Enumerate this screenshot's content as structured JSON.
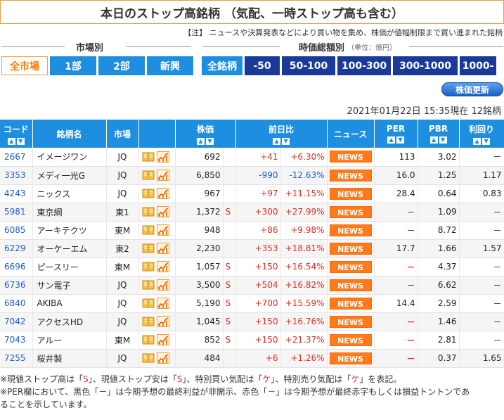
{
  "title": "本日のストップ高銘柄 （気配、一時ストップ高も含む）",
  "note": "【注】 ニュースや決算発表などにより買い物を集め、株価が値幅制限まで買い進まれた銘柄",
  "market_section": {
    "label": "市場別",
    "tabs": [
      "全市場",
      "1部",
      "2部",
      "新興"
    ]
  },
  "cap_section": {
    "label": "時価総額別",
    "unit": "（単位：億円）",
    "tabs": [
      "全銘柄",
      "-50",
      "50-100",
      "100-300",
      "300-1000",
      "1000-"
    ]
  },
  "update_button": "株価更新",
  "asof": "2021年01月22日 15:35現在 12銘柄",
  "columns": {
    "code": "コード",
    "name": "銘柄名",
    "market": "市場",
    "price": "株価",
    "change": "前日比",
    "news": "ニュース",
    "per": "PER",
    "pbr": "PBR",
    "yield": "利回り"
  },
  "news_label": "NEWS",
  "rows": [
    {
      "code": "2667",
      "name": "イメージワン",
      "market": "JQ",
      "price": "692",
      "s": "",
      "chg": "+41",
      "pct": "+6.30%",
      "per": "113",
      "per_red": false,
      "pbr": "3.02",
      "yield": "－"
    },
    {
      "code": "3353",
      "name": "メディ一光G",
      "market": "JQ",
      "price": "6,850",
      "s": "",
      "chg": "-990",
      "pct": "-12.63%",
      "per": "16.0",
      "per_red": false,
      "pbr": "1.25",
      "yield": "1.17"
    },
    {
      "code": "4243",
      "name": "ニックス",
      "market": "JQ",
      "price": "967",
      "s": "",
      "chg": "+97",
      "pct": "+11.15%",
      "per": "28.4",
      "per_red": false,
      "pbr": "0.64",
      "yield": "0.83"
    },
    {
      "code": "5981",
      "name": "東京綱",
      "market": "東1",
      "price": "1,372",
      "s": "S",
      "chg": "+300",
      "pct": "+27.99%",
      "per": "－",
      "per_red": false,
      "pbr": "1.09",
      "yield": "－"
    },
    {
      "code": "6085",
      "name": "アーキテクツ",
      "market": "東M",
      "price": "948",
      "s": "",
      "chg": "+86",
      "pct": "+9.98%",
      "per": "－",
      "per_red": false,
      "pbr": "8.72",
      "yield": "－"
    },
    {
      "code": "6229",
      "name": "オーケーエム",
      "market": "東2",
      "price": "2,230",
      "s": "",
      "chg": "+353",
      "pct": "+18.81%",
      "per": "17.7",
      "per_red": false,
      "pbr": "1.66",
      "yield": "1.57"
    },
    {
      "code": "6696",
      "name": "ピースリー",
      "market": "東M",
      "price": "1,057",
      "s": "S",
      "chg": "+150",
      "pct": "+16.54%",
      "per": "－",
      "per_red": true,
      "pbr": "4.37",
      "yield": "－"
    },
    {
      "code": "6736",
      "name": "サン電子",
      "market": "JQ",
      "price": "3,500",
      "s": "S",
      "chg": "+504",
      "pct": "+16.82%",
      "per": "－",
      "per_red": false,
      "pbr": "6.62",
      "yield": "－"
    },
    {
      "code": "6840",
      "name": "AKIBA",
      "market": "JQ",
      "price": "5,190",
      "s": "S",
      "chg": "+700",
      "pct": "+15.59%",
      "per": "14.4",
      "per_red": false,
      "pbr": "2.59",
      "yield": "－"
    },
    {
      "code": "7042",
      "name": "アクセスHD",
      "market": "JQ",
      "price": "1,045",
      "s": "S",
      "chg": "+150",
      "pct": "+16.76%",
      "per": "－",
      "per_red": true,
      "pbr": "1.46",
      "yield": "－"
    },
    {
      "code": "7043",
      "name": "アルー",
      "market": "東M",
      "price": "852",
      "s": "S",
      "chg": "+150",
      "pct": "+21.37%",
      "per": "－",
      "per_red": true,
      "pbr": "2.81",
      "yield": "－"
    },
    {
      "code": "7255",
      "name": "桜井製",
      "market": "JQ",
      "price": "484",
      "s": "",
      "chg": "+6",
      "pct": "+1.26%",
      "per": "－",
      "per_red": true,
      "pbr": "0.37",
      "yield": "1.65"
    }
  ],
  "footer": {
    "line1_a": "※現値ストップ高は「",
    "line1_s1": "S",
    "line1_b": "」、現値ストップ安は「",
    "line1_s2": "S",
    "line1_c": "」、特別買い気配は「",
    "line1_k1": "ケ",
    "line1_d": "」、特別売り気配は「",
    "line1_k2": "ケ",
    "line1_e": "」を表記。",
    "line2_a": "※PER欄において、黒色「－」は今期予想の最終利益が非開示、赤色「",
    "line2_dash": "－",
    "line2_b": "」は今期予想が最終赤字もしくは損益トントンであ",
    "line3": "ることを示しています。"
  }
}
